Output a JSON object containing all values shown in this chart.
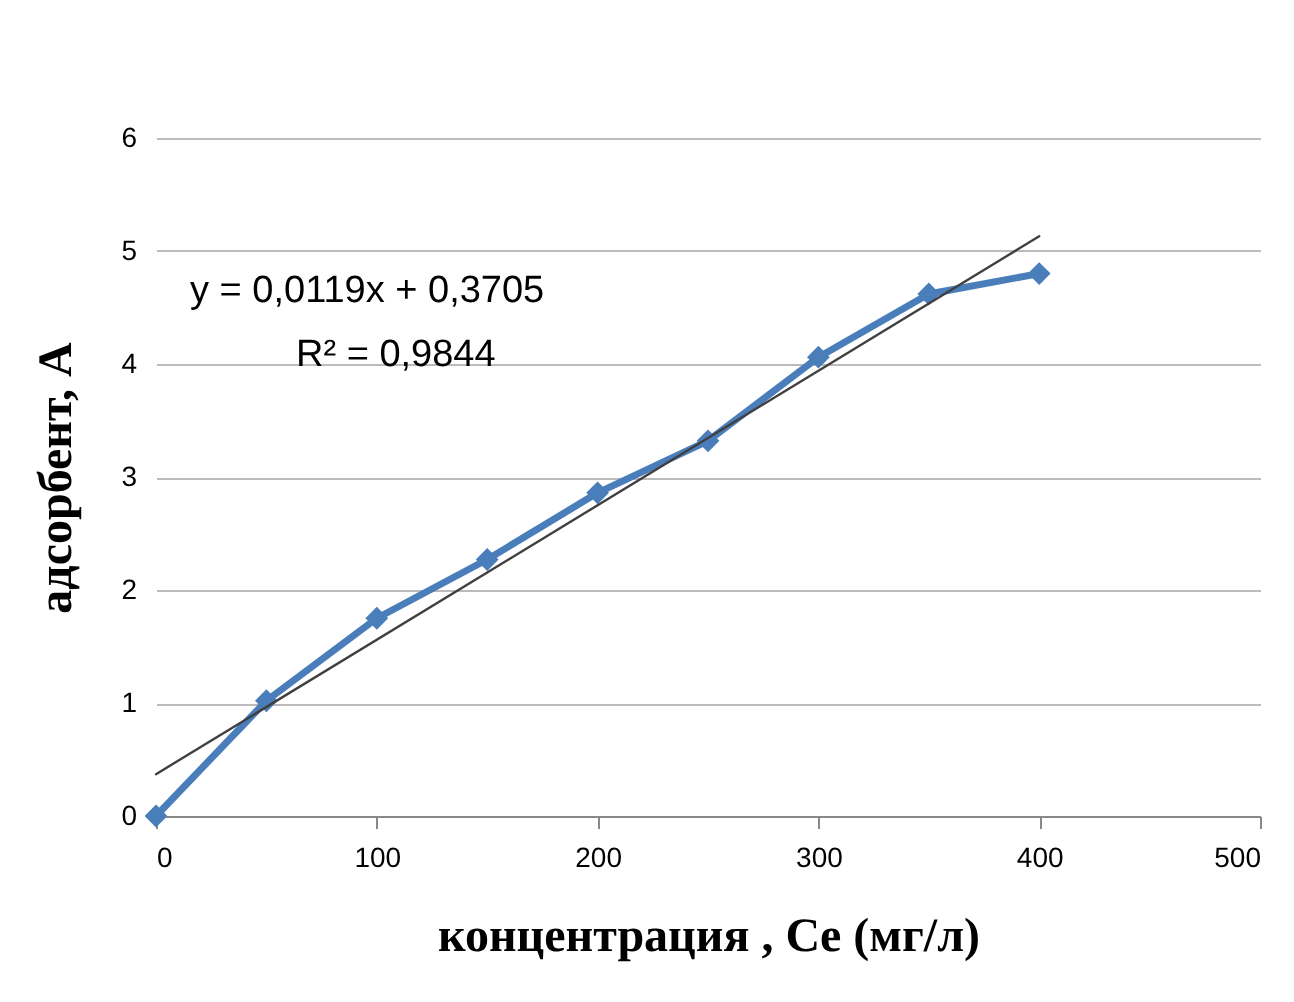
{
  "chart_data": {
    "type": "line",
    "xlabel": "концентрация , Ce (мг/л)",
    "ylabel": "адсорбент, A",
    "x": [
      0,
      50,
      100,
      150,
      200,
      250,
      300,
      350,
      400
    ],
    "series": [
      {
        "color": "#4a7ebb",
        "values": [
          0,
          1.02,
          1.75,
          2.27,
          2.86,
          3.32,
          4.06,
          4.62,
          4.8
        ]
      },
      {
        "type": "line",
        "color": "#404040",
        "marker": "none",
        "x": [
          0,
          400
        ],
        "values": [
          0.37,
          5.13
        ]
      }
    ],
    "xlim": [
      0,
      500
    ],
    "xticks": [
      0,
      100,
      200,
      300,
      400,
      500
    ],
    "ylim": [
      0,
      6
    ],
    "yticks": [
      0,
      1,
      2,
      3,
      4,
      5,
      6
    ],
    "grid": "y",
    "marker": "diamond",
    "annotations": [
      "y = 0,0119x + 0,3705",
      "R² = 0,9844"
    ]
  }
}
